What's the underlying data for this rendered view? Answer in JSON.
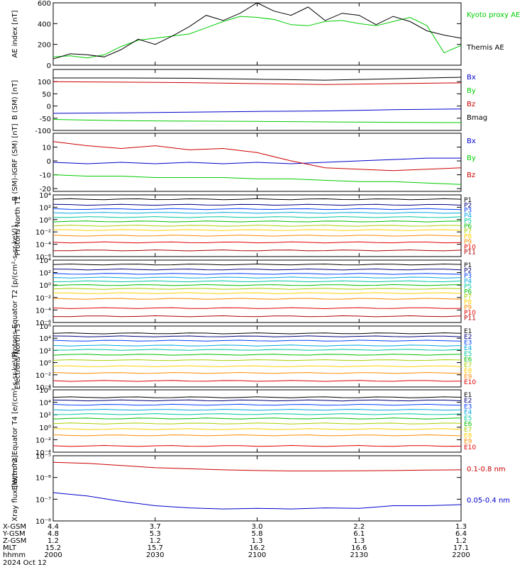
{
  "colors": {
    "black": "#000000",
    "green": "#00cc00",
    "red": "#cc0000",
    "blue": "#0000cc",
    "ch": [
      "#800000",
      "#b00000",
      "#e00000",
      "#ff8c00",
      "#ffd000",
      "#a8d000",
      "#00c000",
      "#00c8a0",
      "#00a8e0",
      "#0040ff",
      "#000080",
      "#000000"
    ]
  },
  "time_axis": {
    "rows": [
      {
        "label": "X-GSM",
        "values": [
          "4.4",
          "3.7",
          "3.0",
          "2.2",
          "1.3"
        ]
      },
      {
        "label": "Y-GSM",
        "values": [
          "4.8",
          "5.3",
          "5.8",
          "6.1",
          "6.4"
        ]
      },
      {
        "label": "Z-GSM",
        "values": [
          "1.2",
          "1.2",
          "1.3",
          "1.3",
          "1.2"
        ]
      },
      {
        "label": "MLT",
        "values": [
          "15.2",
          "15.7",
          "16.2",
          "16.6",
          "17.1"
        ]
      },
      {
        "label": "hhmm",
        "values": [
          "2000",
          "2030",
          "2100",
          "2130",
          "2200"
        ]
      }
    ],
    "date": "2024 Oct 12"
  },
  "chart_data": [
    {
      "type": "line",
      "ylabel": "AE index [nT]",
      "ylim": [
        0,
        600
      ],
      "yticks": [
        "0",
        "200",
        "400",
        "600"
      ],
      "x": [
        0,
        5,
        10,
        15,
        20,
        25,
        30,
        35,
        40,
        45,
        50,
        55,
        60,
        65,
        70,
        75,
        80,
        85,
        90,
        95,
        100,
        105,
        110,
        115,
        120
      ],
      "series": [
        {
          "name": "Kyoto proxy AE",
          "color": "green",
          "values": [
            80,
            90,
            70,
            100,
            180,
            240,
            260,
            280,
            300,
            360,
            420,
            470,
            460,
            440,
            390,
            380,
            420,
            430,
            400,
            380,
            420,
            460,
            380,
            120,
            190
          ]
        },
        {
          "name": "Themis AE",
          "color": "black",
          "values": [
            60,
            110,
            100,
            80,
            150,
            250,
            200,
            280,
            370,
            480,
            430,
            500,
            600,
            520,
            480,
            560,
            430,
            500,
            480,
            390,
            470,
            420,
            330,
            290,
            260
          ]
        }
      ]
    },
    {
      "type": "line",
      "ylabel": "B (SM) [nT]",
      "ylim": [
        -100,
        150
      ],
      "yticks": [
        "-100",
        "-50",
        "0",
        "50",
        "100"
      ],
      "x": [
        0,
        20,
        40,
        60,
        80,
        100,
        120
      ],
      "series": [
        {
          "name": "Bx",
          "color": "blue",
          "values": [
            -30,
            -28,
            -25,
            -22,
            -20,
            -15,
            -12
          ]
        },
        {
          "name": "By",
          "color": "green",
          "values": [
            -55,
            -60,
            -62,
            -63,
            -65,
            -67,
            -68
          ]
        },
        {
          "name": "Bz",
          "color": "red",
          "values": [
            100,
            98,
            96,
            92,
            88,
            92,
            95
          ]
        },
        {
          "name": "Bmag",
          "color": "black",
          "values": [
            115,
            115,
            114,
            110,
            106,
            112,
            118
          ]
        }
      ]
    },
    {
      "type": "line",
      "ylabel": "B (SM)-IGRF (SM) [nT]",
      "ylim": [
        -22,
        20
      ],
      "yticks": [
        "-20",
        "-10",
        "0",
        "10"
      ],
      "x": [
        0,
        10,
        20,
        30,
        40,
        50,
        60,
        70,
        80,
        90,
        100,
        110,
        120
      ],
      "series": [
        {
          "name": "Bx",
          "color": "blue",
          "values": [
            -1,
            -2,
            -1,
            -2,
            -1,
            -2,
            -1,
            -2,
            -1,
            0,
            1,
            2,
            2
          ]
        },
        {
          "name": "By",
          "color": "green",
          "values": [
            -10,
            -11,
            -11,
            -12,
            -12,
            -12,
            -13,
            -13,
            -14,
            -15,
            -15,
            -16,
            -17
          ]
        },
        {
          "name": "Bz",
          "color": "red",
          "values": [
            14,
            11,
            9,
            11,
            8,
            9,
            6,
            0,
            -5,
            -6,
            -7,
            -6,
            -5
          ]
        }
      ]
    },
    {
      "type": "line",
      "ylabel": "Protons North T1",
      "log": true,
      "ylim": [
        -6,
        4
      ],
      "yticks": [
        "10⁻⁶",
        "10⁻⁴",
        "10⁻²",
        "10⁰",
        "10²",
        "10⁴"
      ],
      "channels": [
        "P1",
        "P2",
        "P3",
        "P4",
        "P5",
        "P6",
        "P7",
        "P8",
        "P9",
        "P10",
        "P11"
      ],
      "levels": [
        3.3,
        2.4,
        1.7,
        1.1,
        0.4,
        -0.3,
        -1.0,
        -1.7,
        -2.6,
        -3.7,
        -5.0
      ]
    },
    {
      "type": "line",
      "ylabel": "Protons Equator T2 [p/(cm²-s-sr-keV)]",
      "log": true,
      "ylim": [
        -6,
        4
      ],
      "yticks": [
        "10⁻⁶",
        "10⁻⁴",
        "10⁻²",
        "10⁰",
        "10²",
        "10⁴"
      ],
      "channels": [
        "P1",
        "P2",
        "P3",
        "P4",
        "P5",
        "P6",
        "P7",
        "P8",
        "P9",
        "P10",
        "P11"
      ],
      "levels": [
        3.3,
        2.5,
        1.8,
        1.2,
        0.6,
        0.0,
        -0.6,
        -1.3,
        -2.2,
        -3.7,
        -5.0
      ]
    },
    {
      "type": "line",
      "ylabel": "Electrons North T3",
      "log": true,
      "ylim": [
        -4,
        6
      ],
      "yticks": [
        "10⁻⁴",
        "10⁻²",
        "10⁰",
        "10²",
        "10⁴",
        "10⁶"
      ],
      "channels": [
        "E1",
        "E2",
        "E3",
        "E4",
        "E5",
        "E6",
        "E7",
        "E8",
        "E9",
        "E10"
      ],
      "levels": [
        4.8,
        4.3,
        3.6,
        2.8,
        2.1,
        1.3,
        0.4,
        -0.6,
        -1.7,
        -3.0
      ]
    },
    {
      "type": "line",
      "ylabel": "Electrons Equator T4 [e/(cm²-s-sr-keV)]",
      "log": true,
      "ylim": [
        -4,
        6
      ],
      "yticks": [
        "10⁻⁴",
        "10⁻²",
        "10⁰",
        "10²",
        "10⁴",
        "10⁶"
      ],
      "channels": [
        "E1",
        "E2",
        "E3",
        "E4",
        "E5",
        "E6",
        "E7",
        "E8",
        "E9",
        "E10"
      ],
      "levels": [
        4.8,
        4.3,
        3.6,
        2.8,
        2.1,
        1.4,
        0.6,
        -0.3,
        -1.3,
        -3.0
      ]
    },
    {
      "type": "line",
      "ylabel": "Xray flux [W/m^2]",
      "log": true,
      "ylim": [
        -8,
        -5
      ],
      "yticks": [
        "10⁻⁸",
        "10⁻⁷",
        "10⁻⁶",
        "10⁻⁵"
      ],
      "x": [
        0,
        10,
        20,
        30,
        40,
        50,
        60,
        70,
        80,
        90,
        100,
        110,
        120
      ],
      "series": [
        {
          "name": "0.1-0.8 nm",
          "color": "red",
          "values": [
            -5.3,
            -5.35,
            -5.45,
            -5.55,
            -5.6,
            -5.65,
            -5.68,
            -5.7,
            -5.7,
            -5.69,
            -5.68,
            -5.66,
            -5.65
          ]
        },
        {
          "name": "0.05-0.4 nm",
          "color": "blue",
          "values": [
            -6.7,
            -6.85,
            -7.1,
            -7.3,
            -7.4,
            -7.45,
            -7.42,
            -7.45,
            -7.4,
            -7.42,
            -7.3,
            -7.3,
            -7.25
          ]
        }
      ]
    }
  ]
}
